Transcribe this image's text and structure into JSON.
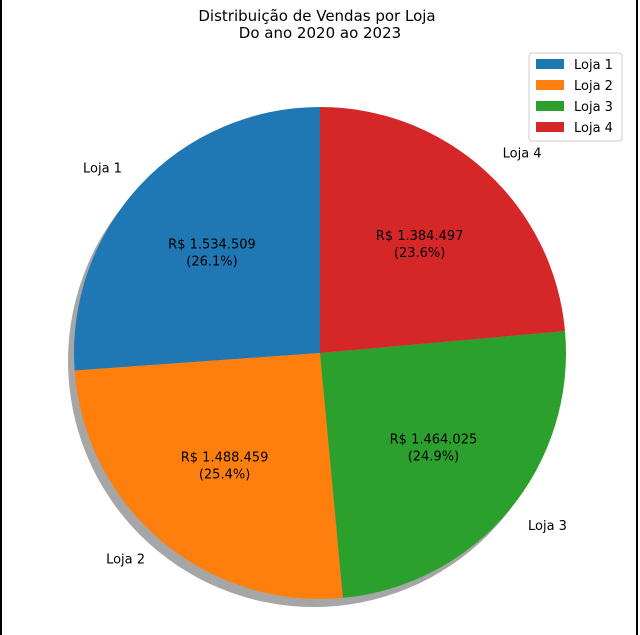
{
  "chart_data": {
    "type": "pie",
    "title": "Distribuição de Vendas por Loja",
    "subtitle": "Do ano 2020 ao 2023",
    "categories": [
      "Loja 1",
      "Loja 2",
      "Loja 3",
      "Loja 4"
    ],
    "values": [
      1534509,
      1488459,
      1464025,
      1384497
    ],
    "value_labels": [
      "R$ 1.534.509",
      "R$ 1.488.459",
      "R$ 1.464.025",
      "R$ 1.384.497"
    ],
    "percent_labels": [
      "(26.1%)",
      "(25.4%)",
      "(24.9%)",
      "(23.6%)"
    ],
    "colors": [
      "#1f77b4",
      "#ff7f0e",
      "#2ca02c",
      "#d62728"
    ],
    "start_angle_deg": 90,
    "direction": "counterclockwise",
    "shadow": true,
    "legend": {
      "position": "top-right",
      "entries": [
        "Loja 1",
        "Loja 2",
        "Loja 3",
        "Loja 4"
      ]
    }
  }
}
